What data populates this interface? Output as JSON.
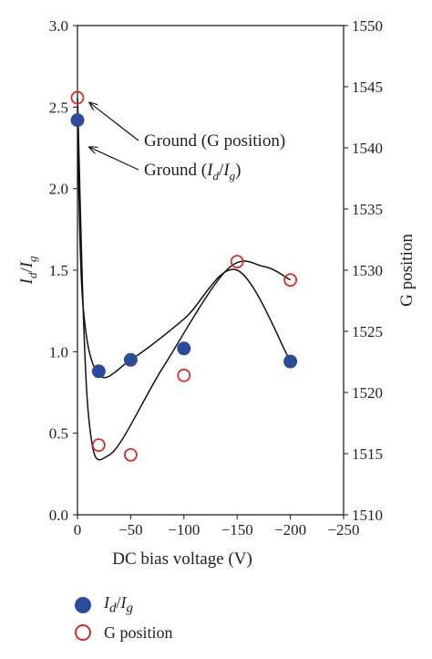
{
  "chart_data": {
    "type": "scatter",
    "xlabel": "DC bias voltage (V)",
    "ylabel_left": "I_d/I_g",
    "ylabel_right": "G position",
    "x_ticks": [
      "0",
      "−50",
      "−100",
      "−150",
      "−200",
      "−250"
    ],
    "y_left_ticks": [
      "0.0",
      "0.5",
      "1.0",
      "1.5",
      "2.0",
      "2.5",
      "3.0"
    ],
    "y_right_ticks": [
      "1510",
      "1515",
      "1520",
      "1525",
      "1530",
      "1535",
      "1540",
      "1545",
      "1550"
    ],
    "xlim": [
      0,
      -250
    ],
    "ylim_left": [
      0,
      3.0
    ],
    "ylim_right": [
      1510,
      1550
    ],
    "series": [
      {
        "name": "I_d/I_g",
        "axis": "left",
        "marker": "filled-circle",
        "color": "#2e4a9a",
        "x": [
          0,
          -20,
          -50,
          -100,
          -200
        ],
        "y": [
          2.42,
          0.88,
          0.95,
          1.02,
          0.94
        ],
        "fit_curve": [
          [
            0,
            2.42
          ],
          [
            -5,
            1.3
          ],
          [
            -20,
            0.86
          ],
          [
            -50,
            0.95
          ],
          [
            -100,
            1.2
          ],
          [
            -150,
            1.5
          ],
          [
            -200,
            0.94
          ]
        ]
      },
      {
        "name": "G position",
        "axis": "right",
        "marker": "open-circle",
        "color": "#d62b2b",
        "x": [
          0,
          -20,
          -50,
          -100,
          -150,
          -200
        ],
        "y": [
          1544.1,
          1515.7,
          1514.9,
          1521.4,
          1530.7,
          1529.2
        ],
        "fit_curve": [
          [
            0,
            1544.1
          ],
          [
            -10,
            1518.5
          ],
          [
            -30,
            1514.9
          ],
          [
            -80,
            1522.0
          ],
          [
            -140,
            1530.0
          ],
          [
            -175,
            1530.3
          ],
          [
            -200,
            1529.2
          ]
        ]
      }
    ],
    "annotations": [
      {
        "text": "Ground (G position)",
        "target_series": 1
      },
      {
        "prefix": "Ground (",
        "var1": "I",
        "sub1": "d",
        "slash": "/",
        "var2": "I",
        "sub2": "g",
        "suffix": ")",
        "target_series": 0
      }
    ],
    "legend": {
      "placement": "bottom-left",
      "items": [
        {
          "var1": "I",
          "sub1": "d",
          "slash": "/",
          "var2": "I",
          "sub2": "g"
        },
        {
          "label": "G position"
        }
      ]
    }
  }
}
